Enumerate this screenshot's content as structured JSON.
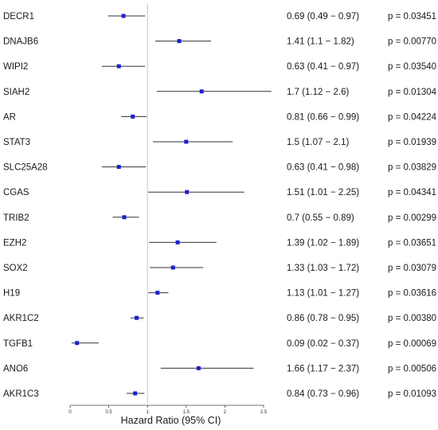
{
  "chart_data": {
    "type": "forest",
    "xlabel": "Hazard Ratio (95% CI)",
    "xlim": [
      0,
      2.5
    ],
    "xticks": [
      "0",
      "0.5",
      "1",
      "1.5",
      "2",
      "2.5"
    ],
    "xtick_values": [
      0,
      0.5,
      1,
      1.5,
      2,
      2.5
    ],
    "reference_line": 1,
    "grid": false,
    "colors": {
      "point": "#1f1fcf",
      "ci": "#333333",
      "reference": "#c8c8c8",
      "axis": "#444444"
    },
    "rows": [
      {
        "gene": "DECR1",
        "hr": 0.69,
        "lower": 0.49,
        "upper": 0.97,
        "hr_text": "0.69 (0.49 − 0.97)",
        "p_text": "p = 0.03451"
      },
      {
        "gene": "DNAJB6",
        "hr": 1.41,
        "lower": 1.1,
        "upper": 1.82,
        "hr_text": "1.41 (1.1 − 1.82)",
        "p_text": "p = 0.00770"
      },
      {
        "gene": "WIPI2",
        "hr": 0.63,
        "lower": 0.41,
        "upper": 0.97,
        "hr_text": "0.63 (0.41 − 0.97)",
        "p_text": "p = 0.03540"
      },
      {
        "gene": "SIAH2",
        "hr": 1.7,
        "lower": 1.12,
        "upper": 2.6,
        "hr_text": "1.7 (1.12 − 2.6)",
        "p_text": "p = 0.01304"
      },
      {
        "gene": "AR",
        "hr": 0.81,
        "lower": 0.66,
        "upper": 0.99,
        "hr_text": "0.81 (0.66 − 0.99)",
        "p_text": "p = 0.04224"
      },
      {
        "gene": "STAT3",
        "hr": 1.5,
        "lower": 1.07,
        "upper": 2.1,
        "hr_text": "1.5 (1.07 − 2.1)",
        "p_text": "p = 0.01939"
      },
      {
        "gene": "SLC25A28",
        "hr": 0.63,
        "lower": 0.41,
        "upper": 0.98,
        "hr_text": "0.63 (0.41 − 0.98)",
        "p_text": "p = 0.03829"
      },
      {
        "gene": "CGAS",
        "hr": 1.51,
        "lower": 1.01,
        "upper": 2.25,
        "hr_text": "1.51 (1.01 − 2.25)",
        "p_text": "p = 0.04341"
      },
      {
        "gene": "TRIB2",
        "hr": 0.7,
        "lower": 0.55,
        "upper": 0.89,
        "hr_text": "0.7 (0.55 − 0.89)",
        "p_text": "p = 0.00299"
      },
      {
        "gene": "EZH2",
        "hr": 1.39,
        "lower": 1.02,
        "upper": 1.89,
        "hr_text": "1.39 (1.02 − 1.89)",
        "p_text": "p = 0.03651"
      },
      {
        "gene": "SOX2",
        "hr": 1.33,
        "lower": 1.03,
        "upper": 1.72,
        "hr_text": "1.33 (1.03 − 1.72)",
        "p_text": "p = 0.03079"
      },
      {
        "gene": "H19",
        "hr": 1.13,
        "lower": 1.01,
        "upper": 1.27,
        "hr_text": "1.13 (1.01 − 1.27)",
        "p_text": "p = 0.03616"
      },
      {
        "gene": "AKR1C2",
        "hr": 0.86,
        "lower": 0.78,
        "upper": 0.95,
        "hr_text": "0.86 (0.78 − 0.95)",
        "p_text": "p = 0.00380"
      },
      {
        "gene": "TGFB1",
        "hr": 0.09,
        "lower": 0.02,
        "upper": 0.37,
        "hr_text": "0.09 (0.02 − 0.37)",
        "p_text": "p = 0.00069"
      },
      {
        "gene": "ANO6",
        "hr": 1.66,
        "lower": 1.17,
        "upper": 2.37,
        "hr_text": "1.66 (1.17 − 2.37)",
        "p_text": "p = 0.00506"
      },
      {
        "gene": "AKR1C3",
        "hr": 0.84,
        "lower": 0.73,
        "upper": 0.96,
        "hr_text": "0.84 (0.73 − 0.96)",
        "p_text": "p = 0.01093"
      }
    ]
  }
}
